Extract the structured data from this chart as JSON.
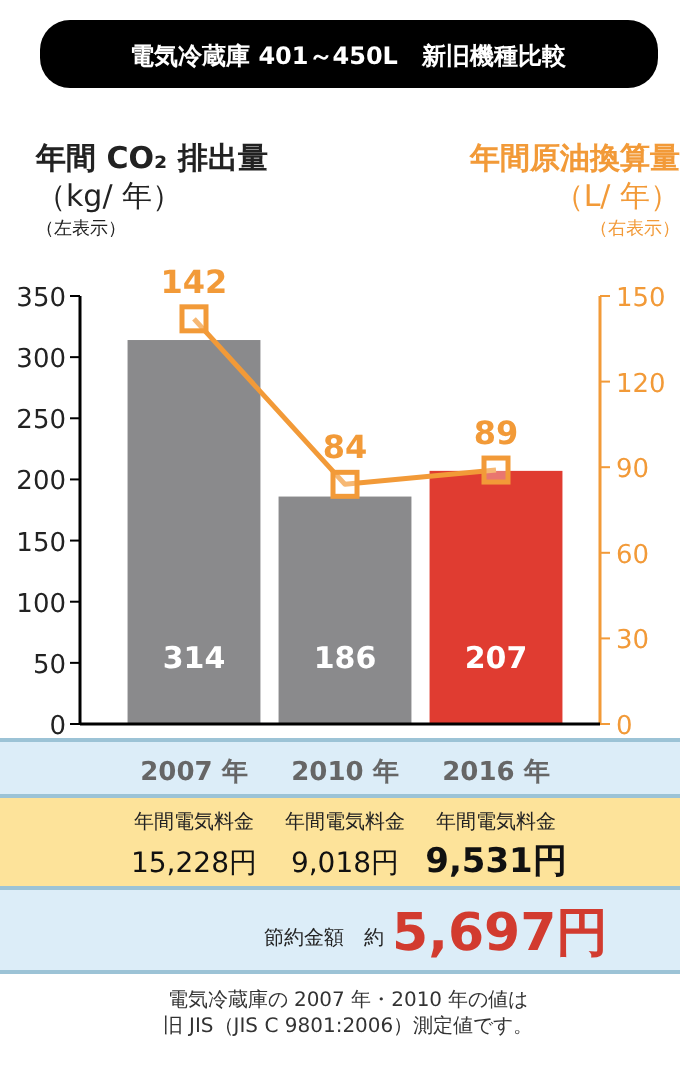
{
  "chart_data": {
    "type": "bar",
    "title": "電気冷蔵庫 401～450L　新旧機種比較",
    "ylabel": "年間 CO₂ 排出量（kg/ 年）（左表示）",
    "y2label": "年間原油換算量（L/ 年）（右表示）",
    "categories": [
      "2007 年",
      "2010 年",
      "2016 年"
    ],
    "series": [
      {
        "colors": [
          "#8a8a8c",
          "#8a8a8c",
          "#e03c31"
        ],
        "values": [
          314,
          186,
          207
        ]
      },
      {
        "type": "line",
        "axis": "y2",
        "color": "#f29a38",
        "values": [
          142,
          84,
          89
        ]
      }
    ],
    "ylim": [
      0,
      350
    ],
    "yticks": [
      0,
      50,
      100,
      150,
      200,
      250,
      300,
      350
    ],
    "y2lim": [
      0,
      150
    ],
    "y2ticks": [
      0,
      30,
      60,
      90,
      120,
      150
    ],
    "marker": "square",
    "data_labels": true,
    "grid": false,
    "annotations": [
      "年間電気料金",
      "年間電気料金",
      "年間電気料金",
      "15,228円",
      "9,018円",
      "9,531円",
      "節約金額　約",
      "5,697円",
      "電気冷蔵庫の 2007 年・2010 年の値は",
      "旧 JIS（JIS C 9801:2006）測定値です。"
    ]
  }
}
